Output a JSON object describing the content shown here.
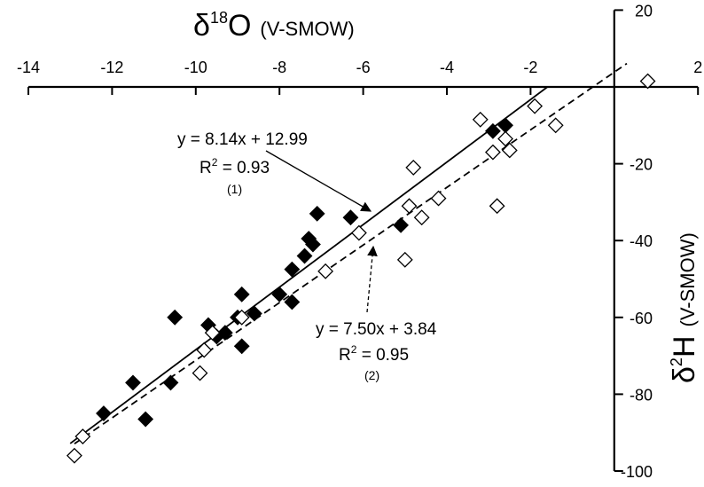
{
  "chart_data": {
    "type": "scatter",
    "x_axis": {
      "symbol": "δ",
      "superscript": "18",
      "element": "O",
      "unit": "(V-SMOW)",
      "range": [
        -14,
        2
      ],
      "ticks": [
        -14,
        -12,
        -10,
        -8,
        -6,
        -4,
        -2,
        2
      ]
    },
    "y_axis": {
      "symbol": "δ",
      "superscript": "2",
      "element": "H",
      "unit": "(V-SMOW)",
      "range": [
        -100,
        20
      ],
      "ticks": [
        -100,
        -80,
        -60,
        -40,
        -20,
        20
      ]
    },
    "grid": false,
    "series": [
      {
        "marker": "filled-diamond",
        "color": "#000000",
        "points": [
          [
            -12.2,
            -85
          ],
          [
            -11.5,
            -77
          ],
          [
            -10.6,
            -77
          ],
          [
            -10.5,
            -60
          ],
          [
            -11.2,
            -86.5
          ],
          [
            -9.7,
            -62
          ],
          [
            -9.5,
            -65
          ],
          [
            -9.3,
            -64
          ],
          [
            -9.0,
            -60
          ],
          [
            -8.9,
            -54
          ],
          [
            -8.9,
            -67.5
          ],
          [
            -8.6,
            -59
          ],
          [
            -8.0,
            -54
          ],
          [
            -7.7,
            -47.5
          ],
          [
            -7.7,
            -56
          ],
          [
            -7.4,
            -44
          ],
          [
            -7.3,
            -39.5
          ],
          [
            -7.2,
            -41
          ],
          [
            -7.1,
            -33
          ],
          [
            -6.3,
            -34
          ],
          [
            -5.1,
            -36
          ],
          [
            -2.9,
            -11.5
          ],
          [
            -2.6,
            -10
          ]
        ]
      },
      {
        "marker": "open-diamond",
        "color": "#000000",
        "points": [
          [
            -12.9,
            -96
          ],
          [
            -12.7,
            -91
          ],
          [
            -9.9,
            -74.5
          ],
          [
            -9.8,
            -68.5
          ],
          [
            -9.6,
            -64
          ],
          [
            -8.9,
            -60
          ],
          [
            -6.9,
            -48
          ],
          [
            -6.1,
            -38
          ],
          [
            -5.0,
            -45
          ],
          [
            -4.9,
            -31
          ],
          [
            -4.8,
            -21
          ],
          [
            -4.6,
            -34
          ],
          [
            -4.2,
            -29
          ],
          [
            -3.2,
            -8.5
          ],
          [
            -2.9,
            -17
          ],
          [
            -2.8,
            -31
          ],
          [
            -2.6,
            -13.5
          ],
          [
            -2.5,
            -16.5
          ],
          [
            -1.9,
            -5
          ],
          [
            -1.4,
            -10
          ],
          [
            0.8,
            1.5
          ]
        ]
      }
    ],
    "fit_lines": [
      {
        "id": "1",
        "slope": 8.14,
        "intercept": 12.99,
        "x_range": [
          -13.0,
          -1.6
        ],
        "style": "solid"
      },
      {
        "id": "2",
        "slope": 7.5,
        "intercept": 3.84,
        "x_range": [
          -12.9,
          0.3
        ],
        "style": "dashed"
      }
    ],
    "annotations": [
      {
        "id": "1",
        "equation": "y = 8.14x + 12.99",
        "r2_prefix": "R",
        "r2_exp": "2",
        "r2_value": " = 0.93",
        "tag": "(1)"
      },
      {
        "id": "2",
        "equation": "y = 7.50x + 3.84",
        "r2_prefix": "R",
        "r2_exp": "2",
        "r2_value": " = 0.95",
        "tag": "(2)"
      }
    ]
  }
}
